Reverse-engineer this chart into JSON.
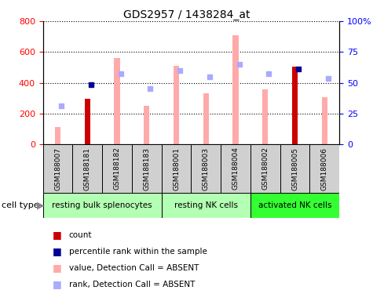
{
  "title": "GDS2957 / 1438284_at",
  "samples": [
    "GSM188007",
    "GSM188181",
    "GSM188182",
    "GSM188183",
    "GSM188001",
    "GSM188003",
    "GSM188004",
    "GSM188002",
    "GSM188005",
    "GSM188006"
  ],
  "value_absent": [
    115,
    null,
    560,
    250,
    510,
    330,
    710,
    355,
    null,
    305
  ],
  "rank_absent": [
    250,
    null,
    460,
    360,
    480,
    440,
    520,
    460,
    null,
    430
  ],
  "count_present": [
    null,
    295,
    null,
    null,
    null,
    null,
    null,
    null,
    505,
    null
  ],
  "percentile_present": [
    null,
    390,
    null,
    null,
    null,
    null,
    null,
    null,
    490,
    null
  ],
  "ylim_left": [
    0,
    800
  ],
  "ylim_right": [
    0,
    100
  ],
  "yticks_left": [
    0,
    200,
    400,
    600,
    800
  ],
  "yticks_right": [
    0,
    25,
    50,
    75,
    100
  ],
  "ytick_labels_right": [
    "0",
    "25",
    "50",
    "75",
    "100%"
  ],
  "group_starts": [
    0,
    4,
    7
  ],
  "group_ends": [
    3,
    6,
    9
  ],
  "group_labels": [
    "resting bulk splenocytes",
    "resting NK cells",
    "activated NK cells"
  ],
  "group_colors": [
    "#b3ffb3",
    "#b3ffb3",
    "#33ff33"
  ],
  "color_value_absent": "#ffaaaa",
  "color_rank_absent": "#aaaaff",
  "color_count_present": "#cc0000",
  "color_percentile_present": "#000099",
  "legend_items": [
    {
      "label": "count",
      "color": "#cc0000"
    },
    {
      "label": "percentile rank within the sample",
      "color": "#000099"
    },
    {
      "label": "value, Detection Call = ABSENT",
      "color": "#ffaaaa"
    },
    {
      "label": "rank, Detection Call = ABSENT",
      "color": "#aaaaff"
    }
  ]
}
